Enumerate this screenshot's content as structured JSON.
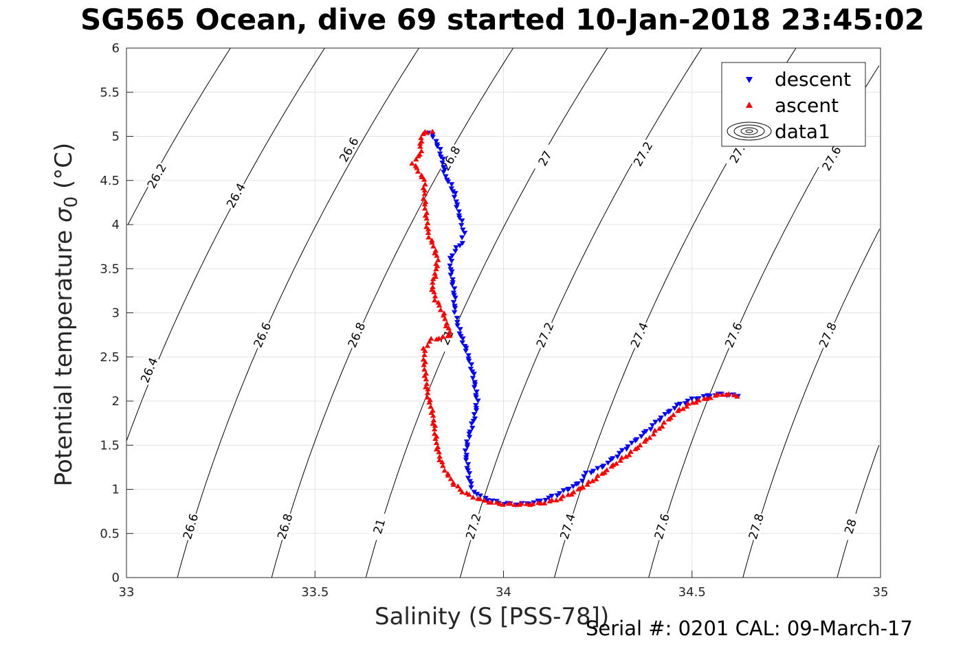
{
  "chart_data": {
    "type": "scatter",
    "title": "SG565 Ocean, dive 69 started 10-Jan-2018 23:45:02",
    "xlabel": "Salinity (S [PSS-78])",
    "ylabel": "Potential temperature",
    "ylabel_sigma": "σ",
    "ylabel_sub": "0",
    "ylabel_units": "(°C)",
    "footer": "Serial #: 0201  CAL: 09-March-17",
    "xlim": [
      33,
      35
    ],
    "ylim": [
      0,
      6
    ],
    "xticks": [
      "33",
      "33.5",
      "34",
      "34.5",
      "35"
    ],
    "yticks": [
      "0",
      "0.5",
      "1",
      "1.5",
      "2",
      "2.5",
      "3",
      "3.5",
      "4",
      "4.5",
      "5",
      "5.5",
      "6"
    ],
    "grid": true,
    "legend_position": "top-right",
    "legend": [
      "descent",
      "ascent",
      "data1"
    ],
    "contour_levels": [
      26.2,
      26.4,
      26.6,
      26.8,
      27.0,
      27.2,
      27.4,
      27.6,
      27.8,
      28.0
    ],
    "contour_labels": [
      {
        "text": "26.2",
        "s": 33.08,
        "t": 4.55
      },
      {
        "text": "26.4",
        "s": 33.29,
        "t": 4.33
      },
      {
        "text": "26.6",
        "s": 33.59,
        "t": 4.85
      },
      {
        "text": "26.8",
        "s": 33.86,
        "t": 4.75
      },
      {
        "text": "27",
        "s": 34.11,
        "t": 4.75
      },
      {
        "text": "27.2",
        "s": 34.37,
        "t": 4.8
      },
      {
        "text": "27.",
        "s": 34.62,
        "t": 4.8
      },
      {
        "text": "27.6",
        "s": 34.87,
        "t": 4.75
      },
      {
        "text": "26.4",
        "s": 33.06,
        "t": 2.35
      },
      {
        "text": "26.6",
        "s": 33.36,
        "t": 2.75
      },
      {
        "text": "26.8",
        "s": 33.61,
        "t": 2.75
      },
      {
        "text": "21",
        "s": 33.85,
        "t": 2.72
      },
      {
        "text": "27.2",
        "s": 34.11,
        "t": 2.75
      },
      {
        "text": "27.4",
        "s": 34.36,
        "t": 2.75
      },
      {
        "text": "27.6",
        "s": 34.61,
        "t": 2.75
      },
      {
        "text": "27.8",
        "s": 34.86,
        "t": 2.75
      },
      {
        "text": "26.6",
        "s": 33.17,
        "t": 0.58
      },
      {
        "text": "26.8",
        "s": 33.42,
        "t": 0.58
      },
      {
        "text": "21",
        "s": 33.67,
        "t": 0.58
      },
      {
        "text": "27.2",
        "s": 33.92,
        "t": 0.58
      },
      {
        "text": "27.4",
        "s": 34.17,
        "t": 0.58
      },
      {
        "text": "27.6",
        "s": 34.42,
        "t": 0.58
      },
      {
        "text": "27.8",
        "s": 34.67,
        "t": 0.58
      },
      {
        "text": "28",
        "s": 34.92,
        "t": 0.58
      }
    ],
    "series": [
      {
        "name": "descent",
        "color": "#0000ff",
        "marker": "triangle-down",
        "path": [
          [
            33.8,
            5.05
          ],
          [
            33.81,
            5.02
          ],
          [
            33.82,
            4.95
          ],
          [
            33.83,
            4.85
          ],
          [
            33.84,
            4.7
          ],
          [
            33.845,
            4.55
          ],
          [
            33.86,
            4.45
          ],
          [
            33.87,
            4.35
          ],
          [
            33.88,
            4.15
          ],
          [
            33.89,
            4.0
          ],
          [
            33.895,
            3.9
          ],
          [
            33.89,
            3.8
          ],
          [
            33.87,
            3.7
          ],
          [
            33.86,
            3.62
          ],
          [
            33.86,
            3.5
          ],
          [
            33.865,
            3.35
          ],
          [
            33.87,
            3.2
          ],
          [
            33.87,
            3.05
          ],
          [
            33.875,
            2.95
          ],
          [
            33.88,
            2.85
          ],
          [
            33.89,
            2.7
          ],
          [
            33.9,
            2.6
          ],
          [
            33.91,
            2.45
          ],
          [
            33.92,
            2.3
          ],
          [
            33.925,
            2.15
          ],
          [
            33.93,
            2.0
          ],
          [
            33.925,
            1.85
          ],
          [
            33.915,
            1.7
          ],
          [
            33.905,
            1.55
          ],
          [
            33.9,
            1.4
          ],
          [
            33.905,
            1.25
          ],
          [
            33.91,
            1.1
          ],
          [
            33.92,
            0.98
          ],
          [
            33.94,
            0.92
          ],
          [
            33.97,
            0.87
          ],
          [
            34.0,
            0.84
          ],
          [
            34.04,
            0.83
          ],
          [
            34.08,
            0.85
          ],
          [
            34.12,
            0.9
          ],
          [
            34.16,
            0.98
          ],
          [
            34.2,
            1.07
          ],
          [
            34.22,
            1.18
          ],
          [
            34.26,
            1.25
          ],
          [
            34.3,
            1.38
          ],
          [
            34.34,
            1.52
          ],
          [
            34.38,
            1.66
          ],
          [
            34.42,
            1.82
          ],
          [
            34.46,
            1.95
          ],
          [
            34.5,
            2.02
          ],
          [
            34.54,
            2.06
          ],
          [
            34.58,
            2.08
          ],
          [
            34.62,
            2.06
          ]
        ]
      },
      {
        "name": "ascent",
        "color": "#ff0000",
        "marker": "triangle-up",
        "path": [
          [
            34.62,
            2.06
          ],
          [
            34.58,
            2.08
          ],
          [
            34.54,
            2.03
          ],
          [
            34.5,
            1.98
          ],
          [
            34.46,
            1.88
          ],
          [
            34.42,
            1.72
          ],
          [
            34.38,
            1.56
          ],
          [
            34.34,
            1.42
          ],
          [
            34.3,
            1.3
          ],
          [
            34.26,
            1.17
          ],
          [
            34.22,
            1.05
          ],
          [
            34.18,
            0.95
          ],
          [
            34.14,
            0.88
          ],
          [
            34.1,
            0.84
          ],
          [
            34.06,
            0.83
          ],
          [
            34.02,
            0.83
          ],
          [
            33.98,
            0.84
          ],
          [
            33.94,
            0.88
          ],
          [
            33.9,
            0.95
          ],
          [
            33.87,
            1.05
          ],
          [
            33.85,
            1.18
          ],
          [
            33.835,
            1.3
          ],
          [
            33.825,
            1.45
          ],
          [
            33.82,
            1.6
          ],
          [
            33.815,
            1.75
          ],
          [
            33.81,
            1.9
          ],
          [
            33.8,
            2.05
          ],
          [
            33.795,
            2.2
          ],
          [
            33.79,
            2.4
          ],
          [
            33.79,
            2.6
          ],
          [
            33.81,
            2.7
          ],
          [
            33.84,
            2.72
          ],
          [
            33.86,
            2.75
          ],
          [
            33.85,
            2.85
          ],
          [
            33.84,
            3.0
          ],
          [
            33.82,
            3.15
          ],
          [
            33.81,
            3.3
          ],
          [
            33.82,
            3.45
          ],
          [
            33.825,
            3.6
          ],
          [
            33.815,
            3.75
          ],
          [
            33.8,
            3.9
          ],
          [
            33.795,
            4.1
          ],
          [
            33.79,
            4.3
          ],
          [
            33.79,
            4.5
          ],
          [
            33.76,
            4.7
          ],
          [
            33.78,
            4.8
          ],
          [
            33.78,
            4.95
          ],
          [
            33.79,
            5.05
          ],
          [
            33.81,
            5.05
          ]
        ]
      }
    ]
  }
}
